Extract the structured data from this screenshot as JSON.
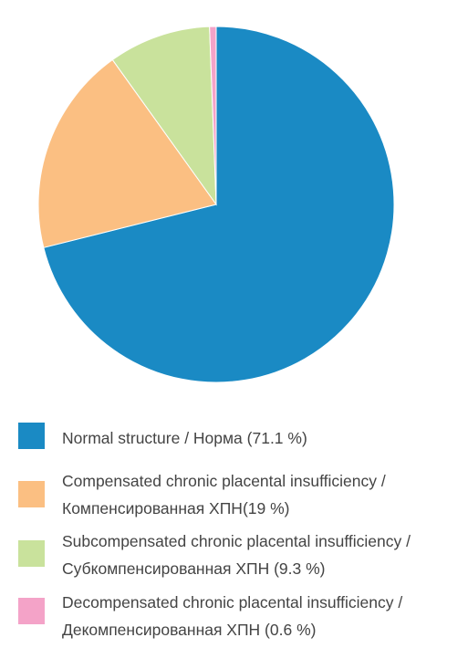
{
  "chart_data": {
    "type": "pie",
    "categories": [
      "Normal structure / Норма (71.1 %)",
      "Compensated chronic placental insufficiency /\nКомпенсированная ХПН(19 %)",
      "Subcompensated chronic placental insufficiency /\nСубкомпенсированная ХПН (9.3 %)",
      "Decompensated chronic placental insufficiency /\nДекомпенсированная ХПН (0.6 %)"
    ],
    "values": [
      71.1,
      19,
      9.3,
      0.6
    ],
    "colors": [
      "#1a8ac4",
      "#fbbf82",
      "#c9e29c",
      "#f4a3c8"
    ]
  }
}
